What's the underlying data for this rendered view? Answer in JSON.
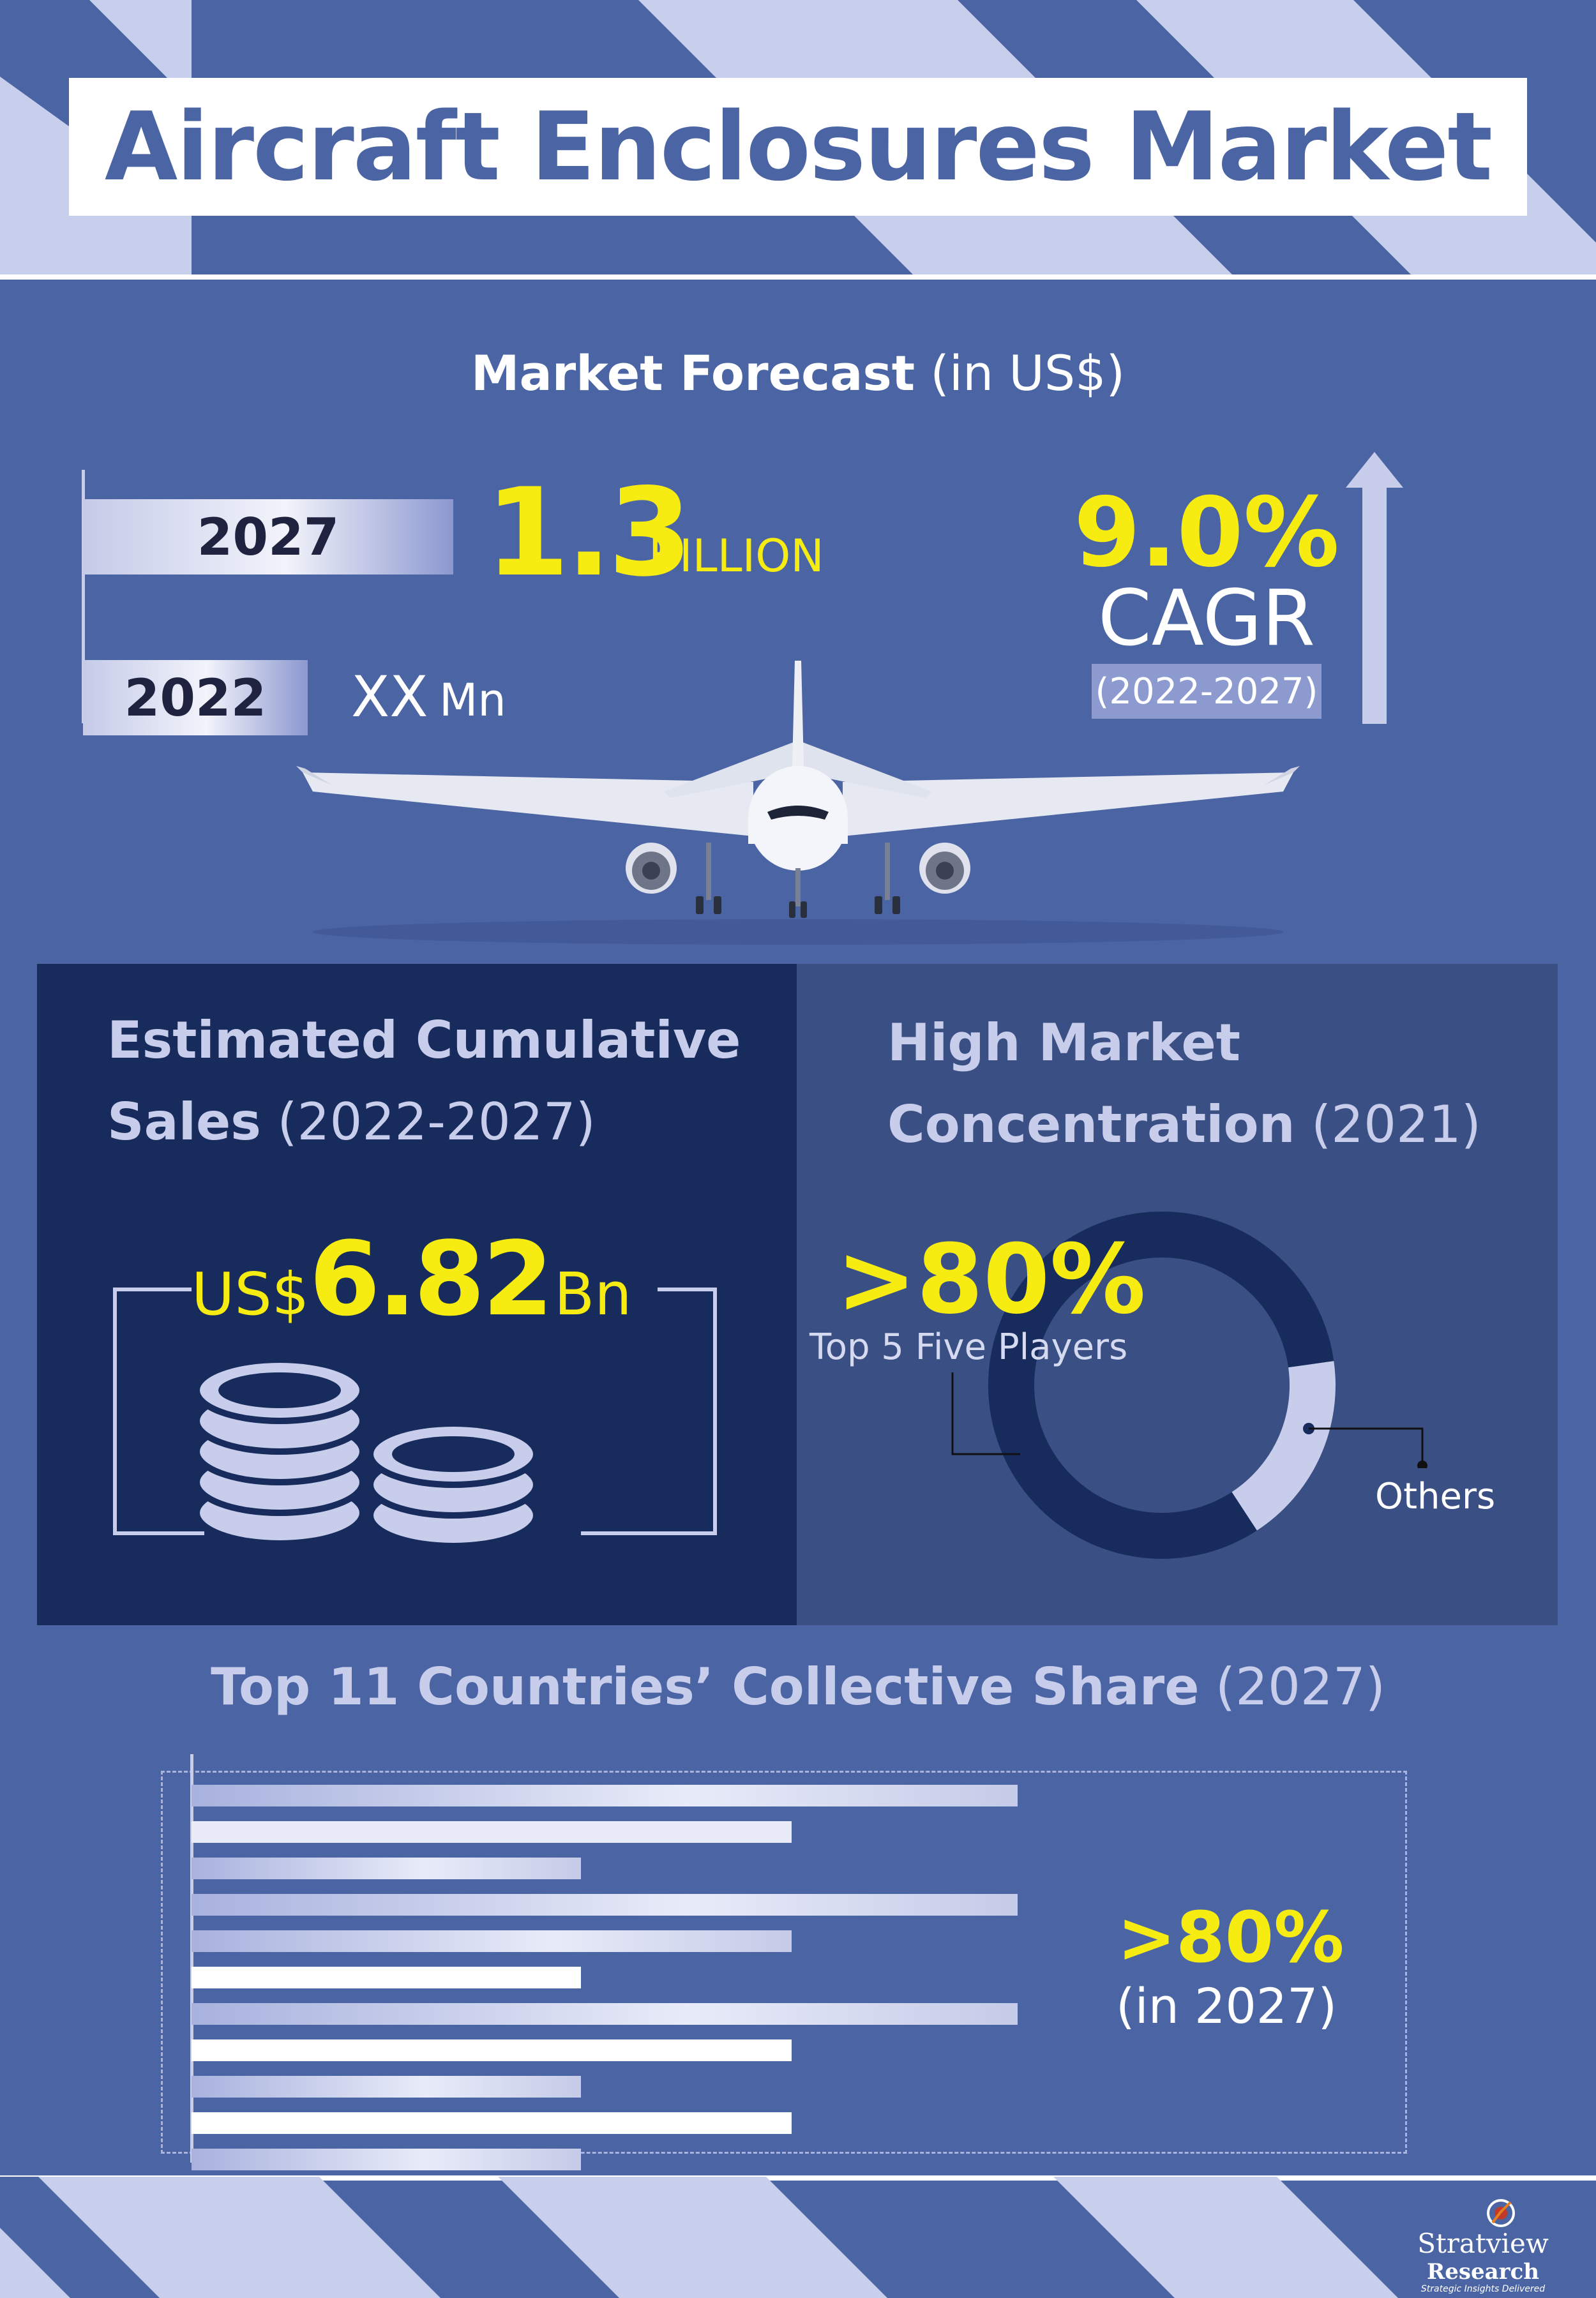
{
  "title": "Aircraft Enclosures Market",
  "forecast": {
    "heading_bold": "Market Forecast",
    "heading_unit": "(in US$)",
    "rows": [
      {
        "year": "2027",
        "value": "1.3",
        "unit": "BILLION"
      },
      {
        "year": "2022",
        "value": "XX",
        "unit": "Mn"
      }
    ],
    "cagr": {
      "value": "9.0%",
      "label": "CAGR",
      "period": "(2022-2027)"
    }
  },
  "sales": {
    "heading_bold_1": "Estimated Cumulative",
    "heading_bold_2": "Sales",
    "heading_period": "(2022-2027)",
    "currency": "US$",
    "value": "6.82",
    "unit": "Bn"
  },
  "concentration": {
    "heading_bold_1": "High Market",
    "heading_bold_2": "Concentration",
    "heading_year": "(2021)",
    "value": ">80%",
    "label": "Top 5 Five Players",
    "others_label": "Others",
    "top_share_fraction": 0.82
  },
  "countries": {
    "heading_bold": "Top 11 Countries’ Collective Share",
    "heading_year": "(2027)",
    "value": ">80%",
    "year": "(in 2027)"
  },
  "logo": {
    "name": "Stratview",
    "sub": "Research",
    "tagline": "Strategic Insights Delivered"
  },
  "colors": {
    "background": "#4b64a4",
    "accent_yellow": "#f6ec12",
    "dark_panel": "#172b5d",
    "mid_panel": "#3a4f84",
    "light_bar": "#c7cdea"
  }
}
